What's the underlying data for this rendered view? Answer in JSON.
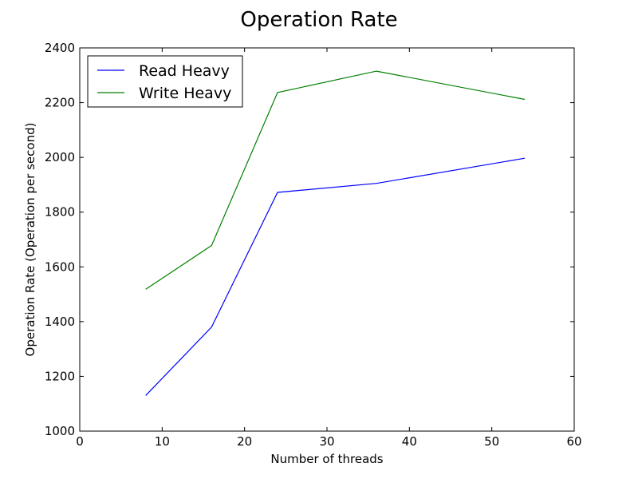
{
  "chart_data": {
    "type": "line",
    "title": "Operation Rate",
    "xlabel": "Number of threads",
    "ylabel": "Operation Rate (Operation per second)",
    "xlim": [
      0,
      60
    ],
    "ylim": [
      1000,
      2400
    ],
    "xticks": [
      0,
      10,
      20,
      30,
      40,
      50,
      60
    ],
    "yticks": [
      1000,
      1200,
      1400,
      1600,
      1800,
      2000,
      2200,
      2400
    ],
    "grid": false,
    "legend_position": "top-left",
    "x": [
      8,
      16,
      24,
      36,
      54
    ],
    "series": [
      {
        "name": "Read Heavy",
        "color": "#0000ff",
        "values": [
          1130,
          1380,
          1872,
          1905,
          1997
        ]
      },
      {
        "name": "Write Heavy",
        "color": "#008000",
        "values": [
          1518,
          1678,
          2237,
          2315,
          2212
        ]
      }
    ]
  }
}
